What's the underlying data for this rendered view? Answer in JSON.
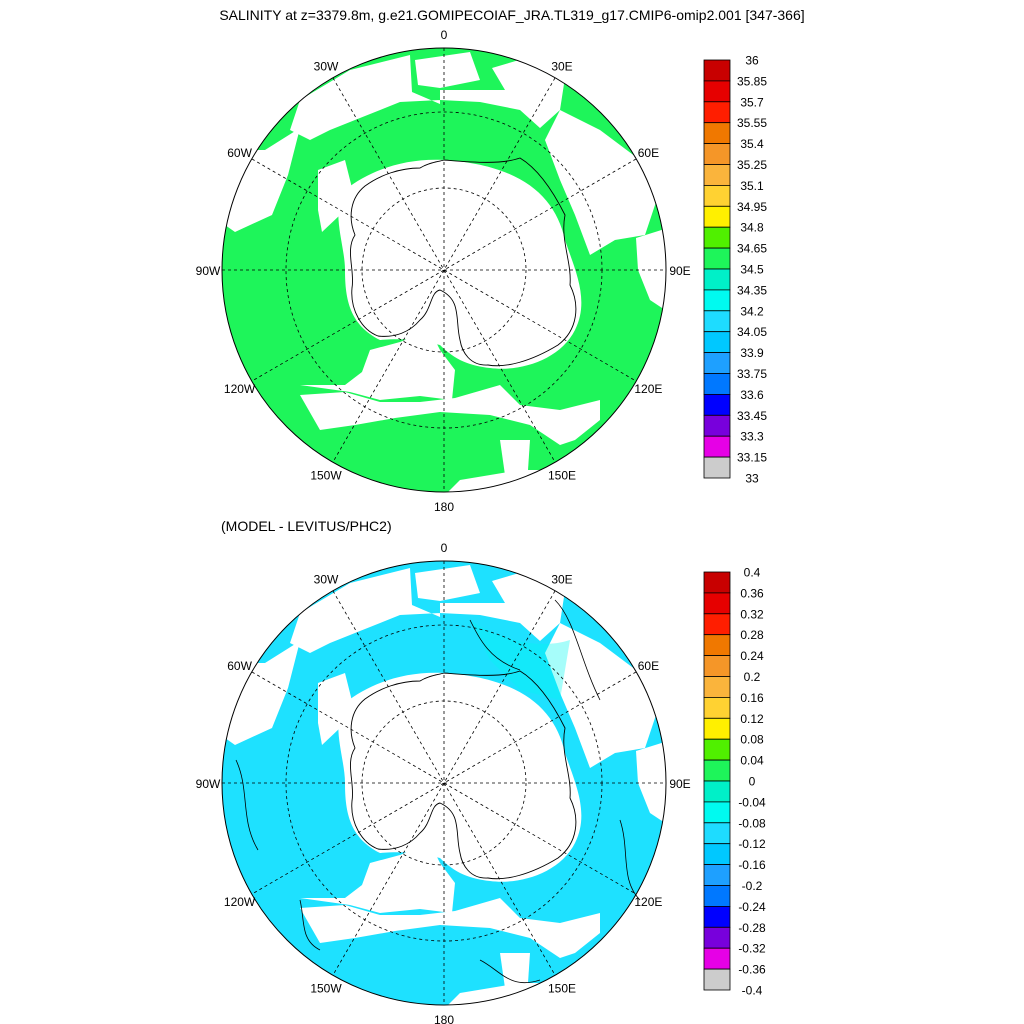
{
  "title": "SALINITY at z=3379.8m, g.e21.GOMIPECOIAF_JRA.TL319_g17.CMIP6-omip2.001 [347-366]",
  "subtitle": "(MODEL - LEVITUS/PHC2)",
  "maps": [
    {
      "id": "salinity",
      "lon_labels": [
        "0",
        "30E",
        "60E",
        "90E",
        "120E",
        "150E",
        "180",
        "150W",
        "120W",
        "90W",
        "60W",
        "30W"
      ],
      "fill_color": "#1ef55a",
      "colorbar": {
        "levels": [
          "36",
          "35.85",
          "35.7",
          "35.55",
          "35.4",
          "35.25",
          "35.1",
          "34.95",
          "34.8",
          "34.65",
          "34.5",
          "34.35",
          "34.2",
          "34.05",
          "33.9",
          "33.75",
          "33.6",
          "33.45",
          "33.3",
          "33.15",
          "33"
        ],
        "colors": [
          "#c80000",
          "#e60000",
          "#ff1e00",
          "#f07800",
          "#f59628",
          "#fab43c",
          "#ffd232",
          "#fff000",
          "#50f000",
          "#1ef55a",
          "#00f0c8",
          "#00faf0",
          "#1edcff",
          "#00c8ff",
          "#1ea0ff",
          "#0078ff",
          "#0000ff",
          "#7800dc",
          "#e600e6",
          "#cccccc",
          "#707070"
        ]
      }
    },
    {
      "id": "difference",
      "lon_labels": [
        "0",
        "30E",
        "60E",
        "90E",
        "120E",
        "150E",
        "180",
        "150W",
        "120W",
        "90W",
        "60W",
        "30W"
      ],
      "fill_color": "#1ee1ff",
      "colorbar": {
        "levels": [
          "0.4",
          "0.36",
          "0.32",
          "0.28",
          "0.24",
          "0.2",
          "0.16",
          "0.12",
          "0.08",
          "0.04",
          "0",
          "-0.04",
          "-0.08",
          "-0.12",
          "-0.16",
          "-0.2",
          "-0.24",
          "-0.28",
          "-0.32",
          "-0.36",
          "-0.4"
        ],
        "colors": [
          "#c80000",
          "#e60000",
          "#ff1e00",
          "#f07800",
          "#f59628",
          "#fab43c",
          "#ffd232",
          "#fff000",
          "#50f000",
          "#1ef55a",
          "#00f0c8",
          "#00faf0",
          "#1edcff",
          "#00c8ff",
          "#1ea0ff",
          "#0078ff",
          "#0000ff",
          "#7800dc",
          "#e600e6",
          "#cccccc",
          "#707070"
        ]
      }
    }
  ]
}
